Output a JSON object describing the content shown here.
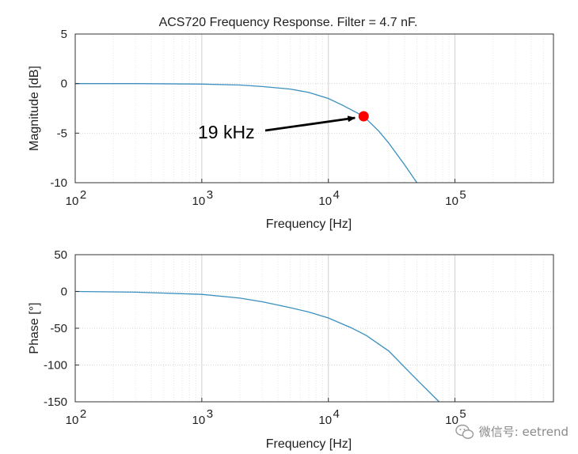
{
  "chart_data": [
    {
      "type": "line",
      "title": "ACS720 Frequency Response. Filter = 4.7 nF.",
      "xlabel": "Frequency [Hz]",
      "ylabel": "Magnitude [dB]",
      "xscale": "log",
      "xlim": [
        100,
        600000
      ],
      "ylim": [
        -10,
        5
      ],
      "xticks": [
        100,
        1000,
        10000,
        100000
      ],
      "xtick_labels": [
        {
          "base": "10",
          "exp": "2"
        },
        {
          "base": "10",
          "exp": "3"
        },
        {
          "base": "10",
          "exp": "4"
        },
        {
          "base": "10",
          "exp": "5"
        }
      ],
      "yticks": [
        "5",
        "0",
        "-5",
        "-10"
      ],
      "grid": true,
      "line_color": "#3a8fbf",
      "series": [
        {
          "x": [
            100,
            300,
            1000,
            2000,
            3000,
            5000,
            7000,
            10000,
            13000,
            16000,
            19000,
            25000,
            30000,
            40000,
            50000
          ],
          "y": [
            0,
            0,
            -0.05,
            -0.15,
            -0.3,
            -0.55,
            -0.9,
            -1.5,
            -2.2,
            -2.8,
            -3.3,
            -4.8,
            -6.0,
            -8.2,
            -10.0
          ]
        }
      ],
      "annotations": [
        {
          "text": "19 kHz",
          "x": 19000,
          "y": -3.3,
          "marker_color": "#ff0000"
        }
      ]
    },
    {
      "type": "line",
      "title": "",
      "xlabel": "Frequency [Hz]",
      "ylabel": "Phase [°]",
      "xscale": "log",
      "xlim": [
        100,
        600000
      ],
      "ylim": [
        -150,
        50
      ],
      "xticks": [
        100,
        1000,
        10000,
        100000
      ],
      "xtick_labels": [
        {
          "base": "10",
          "exp": "2"
        },
        {
          "base": "10",
          "exp": "3"
        },
        {
          "base": "10",
          "exp": "4"
        },
        {
          "base": "10",
          "exp": "5"
        }
      ],
      "yticks": [
        "50",
        "0",
        "-50",
        "-100",
        "-150"
      ],
      "grid": true,
      "line_color": "#3a8fbf",
      "series": [
        {
          "x": [
            100,
            300,
            1000,
            2000,
            3000,
            5000,
            7000,
            10000,
            15000,
            20000,
            30000,
            50000,
            75000
          ],
          "y": [
            0,
            -1,
            -4,
            -9,
            -14,
            -22,
            -28,
            -36,
            -49,
            -60,
            -81,
            -120,
            -150
          ]
        }
      ]
    }
  ],
  "watermark": {
    "text": "微信号: eetrend",
    "icon": "wechat-icon"
  }
}
